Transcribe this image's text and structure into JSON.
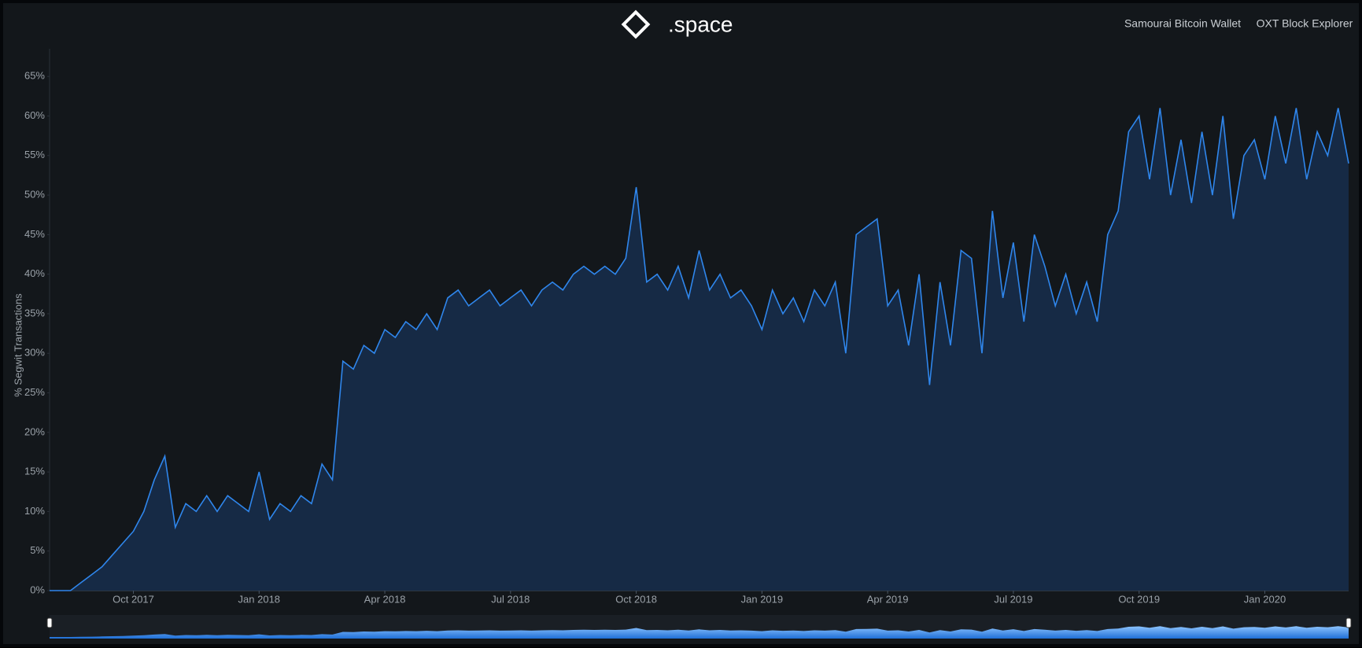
{
  "header": {
    "logo": ".space",
    "links": [
      "Samourai Bitcoin Wallet",
      "OXT Block Explorer"
    ]
  },
  "chart_data": {
    "type": "area",
    "y_label": "% Segwit Transactions",
    "categories": [
      null,
      null,
      null,
      null,
      null,
      null,
      null,
      null,
      "Oct 2017",
      null,
      null,
      null,
      null,
      null,
      null,
      null,
      null,
      null,
      null,
      null,
      "Jan 2018",
      null,
      null,
      null,
      null,
      null,
      null,
      null,
      null,
      null,
      null,
      null,
      "Apr 2018",
      null,
      null,
      null,
      null,
      null,
      null,
      null,
      null,
      null,
      null,
      null,
      "Jul 2018",
      null,
      null,
      null,
      null,
      null,
      null,
      null,
      null,
      null,
      null,
      null,
      "Oct 2018",
      null,
      null,
      null,
      null,
      null,
      null,
      null,
      null,
      null,
      null,
      null,
      "Jan 2019",
      null,
      null,
      null,
      null,
      null,
      null,
      null,
      null,
      null,
      null,
      null,
      "Apr 2019",
      null,
      null,
      null,
      null,
      null,
      null,
      null,
      null,
      null,
      null,
      null,
      "Jul 2019",
      null,
      null,
      null,
      null,
      null,
      null,
      null,
      null,
      null,
      null,
      null,
      "Oct 2019",
      null,
      null,
      null,
      null,
      null,
      null,
      null,
      null,
      null,
      null,
      null,
      "Jan 2020",
      null,
      null,
      null,
      null,
      null,
      null,
      null,
      null
    ],
    "values": [
      0,
      0,
      0,
      1,
      2,
      3,
      4.5,
      6,
      7.5,
      10,
      14,
      17,
      8,
      11,
      10,
      12,
      10,
      12,
      11,
      10,
      15,
      9,
      11,
      10,
      12,
      11,
      16,
      14,
      29,
      28,
      31,
      30,
      33,
      32,
      34,
      33,
      35,
      33,
      37,
      38,
      36,
      37,
      38,
      36,
      37,
      38,
      36,
      38,
      39,
      38,
      40,
      41,
      40,
      41,
      40,
      42,
      51,
      39,
      40,
      38,
      41,
      37,
      43,
      38,
      40,
      37,
      38,
      36,
      33,
      38,
      35,
      37,
      34,
      38,
      36,
      39,
      30,
      45,
      46,
      47,
      36,
      38,
      31,
      40,
      26,
      39,
      31,
      43,
      42,
      30,
      48,
      37,
      44,
      34,
      45,
      41,
      36,
      40,
      35,
      39,
      34,
      45,
      48,
      58,
      60,
      52,
      61,
      50,
      57,
      49,
      58,
      50,
      60,
      47,
      55,
      57,
      52,
      60,
      54,
      61,
      52,
      58,
      55,
      61,
      54
    ],
    "color": "#2f86ec",
    "fill": "#162a45",
    "ylim": [
      0,
      68.5
    ],
    "yticks": [
      {
        "value": 0,
        "label": "0%"
      },
      {
        "value": 5,
        "label": "5%"
      },
      {
        "value": 10,
        "label": "10%"
      },
      {
        "value": 15,
        "label": "15%"
      },
      {
        "value": 20,
        "label": "20%"
      },
      {
        "value": 25,
        "label": "25%"
      },
      {
        "value": 30,
        "label": "30%"
      },
      {
        "value": 35,
        "label": "35%"
      },
      {
        "value": 40,
        "label": "40%"
      },
      {
        "value": 45,
        "label": "45%"
      },
      {
        "value": 50,
        "label": "50%"
      },
      {
        "value": 55,
        "label": "55%"
      },
      {
        "value": 60,
        "label": "60%"
      },
      {
        "value": 65,
        "label": "65%"
      }
    ],
    "grid": false
  }
}
